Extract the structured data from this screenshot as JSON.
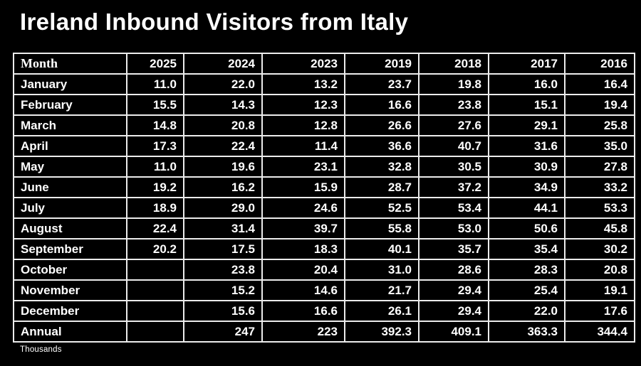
{
  "page": {
    "title": "Ireland Inbound Visitors from Italy",
    "footnote": "Thousands"
  },
  "colors": {
    "background": "#000000",
    "text": "#ffffff",
    "grid_border": "#ececec"
  },
  "chart_data": {
    "type": "table",
    "title": "Ireland Inbound Visitors from Italy",
    "unit": "Thousands",
    "columns": [
      "Month",
      "2025",
      "2024",
      "2023",
      "2019",
      "2018",
      "2017",
      "2016"
    ],
    "rows": [
      {
        "month": "January",
        "values": [
          "11.0",
          "22.0",
          "13.2",
          "23.7",
          "19.8",
          "16.0",
          "16.4"
        ]
      },
      {
        "month": "February",
        "values": [
          "15.5",
          "14.3",
          "12.3",
          "16.6",
          "23.8",
          "15.1",
          "19.4"
        ]
      },
      {
        "month": "March",
        "values": [
          "14.8",
          "20.8",
          "12.8",
          "26.6",
          "27.6",
          "29.1",
          "25.8"
        ]
      },
      {
        "month": "April",
        "values": [
          "17.3",
          "22.4",
          "11.4",
          "36.6",
          "40.7",
          "31.6",
          "35.0"
        ]
      },
      {
        "month": "May",
        "values": [
          "11.0",
          "19.6",
          "23.1",
          "32.8",
          "30.5",
          "30.9",
          "27.8"
        ]
      },
      {
        "month": "June",
        "values": [
          "19.2",
          "16.2",
          "15.9",
          "28.7",
          "37.2",
          "34.9",
          "33.2"
        ]
      },
      {
        "month": "July",
        "values": [
          "18.9",
          "29.0",
          "24.6",
          "52.5",
          "53.4",
          "44.1",
          "53.3"
        ]
      },
      {
        "month": "August",
        "values": [
          "22.4",
          "31.4",
          "39.7",
          "55.8",
          "53.0",
          "50.6",
          "45.8"
        ]
      },
      {
        "month": "September",
        "values": [
          "20.2",
          "17.5",
          "18.3",
          "40.1",
          "35.7",
          "35.4",
          "30.2"
        ]
      },
      {
        "month": "October",
        "values": [
          "",
          "23.8",
          "20.4",
          "31.0",
          "28.6",
          "28.3",
          "20.8"
        ]
      },
      {
        "month": "November",
        "values": [
          "",
          "15.2",
          "14.6",
          "21.7",
          "29.4",
          "25.4",
          "19.1"
        ]
      },
      {
        "month": "December",
        "values": [
          "",
          "15.6",
          "16.6",
          "26.1",
          "29.4",
          "22.0",
          "17.6"
        ]
      },
      {
        "month": "Annual",
        "values": [
          "",
          "247",
          "223",
          "392.3",
          "409.1",
          "363.3",
          "344.4"
        ]
      }
    ]
  }
}
